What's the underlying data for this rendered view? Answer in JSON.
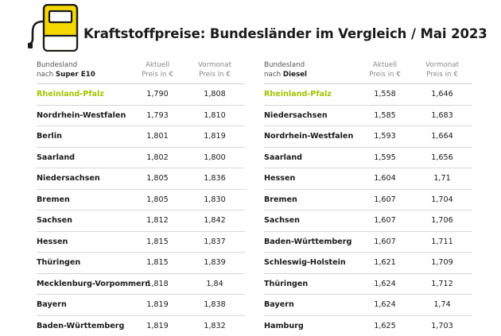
{
  "title": "Kraftstoffpreise: Bundesländer im Vergleich / Mai 2023",
  "colors": {
    "accent_yellow": "#f5d800",
    "highlight_green": "#a4c300"
  },
  "left_table": {
    "col1_line1": "Bundesland",
    "col1_line2_prefix": "nach ",
    "col1_line2_fuel": "Super E10",
    "col2_line1": "Aktuell",
    "col2_line2": "Preis in €",
    "col3_line1": "Vormonat",
    "col3_line2": "Preis in €",
    "rows": [
      {
        "state": "Rheinland-Pfalz",
        "current": "1,790",
        "previous": "1,808"
      },
      {
        "state": "Nordrhein-Westfalen",
        "current": "1,793",
        "previous": "1,810"
      },
      {
        "state": "Berlin",
        "current": "1,801",
        "previous": "1,819"
      },
      {
        "state": "Saarland",
        "current": "1,802",
        "previous": "1,800"
      },
      {
        "state": "Niedersachsen",
        "current": "1,805",
        "previous": "1,836"
      },
      {
        "state": "Bremen",
        "current": "1,805",
        "previous": "1,830"
      },
      {
        "state": "Sachsen",
        "current": "1,812",
        "previous": "1,842"
      },
      {
        "state": "Hessen",
        "current": "1,815",
        "previous": "1,837"
      },
      {
        "state": "Thüringen",
        "current": "1,815",
        "previous": "1,839"
      },
      {
        "state": "Mecklenburg-Vorpommern",
        "current": "1,818",
        "previous": "1,84"
      },
      {
        "state": "Bayern",
        "current": "1,819",
        "previous": "1,838"
      },
      {
        "state": "Baden-Württemberg",
        "current": "1,819",
        "previous": "1,832"
      }
    ]
  },
  "right_table": {
    "col1_line1": "Bundesland",
    "col1_line2_prefix": "nach ",
    "col1_line2_fuel": "Diesel",
    "col2_line1": "Aktuell",
    "col2_line2": "Preis in €",
    "col3_line1": "Vormonat",
    "col3_line2": "Preis in €",
    "rows": [
      {
        "state": "Rheinland-Pfalz",
        "current": "1,558",
        "previous": "1,646"
      },
      {
        "state": "Niedersachsen",
        "current": "1,585",
        "previous": "1,683"
      },
      {
        "state": "Nordrhein-Westfalen",
        "current": "1,593",
        "previous": "1,664"
      },
      {
        "state": "Saarland",
        "current": "1,595",
        "previous": "1,656"
      },
      {
        "state": "Hessen",
        "current": "1,604",
        "previous": "1,71"
      },
      {
        "state": "Bremen",
        "current": "1,607",
        "previous": "1,704"
      },
      {
        "state": "Sachsen",
        "current": "1,607",
        "previous": "1,706"
      },
      {
        "state": "Baden-Württemberg",
        "current": "1,607",
        "previous": "1,711"
      },
      {
        "state": "Schleswig-Holstein",
        "current": "1,621",
        "previous": "1,709"
      },
      {
        "state": "Thüringen",
        "current": "1,624",
        "previous": "1,712"
      },
      {
        "state": "Bayern",
        "current": "1,624",
        "previous": "1,74"
      },
      {
        "state": "Hamburg",
        "current": "1,625",
        "previous": "1,703"
      }
    ]
  }
}
